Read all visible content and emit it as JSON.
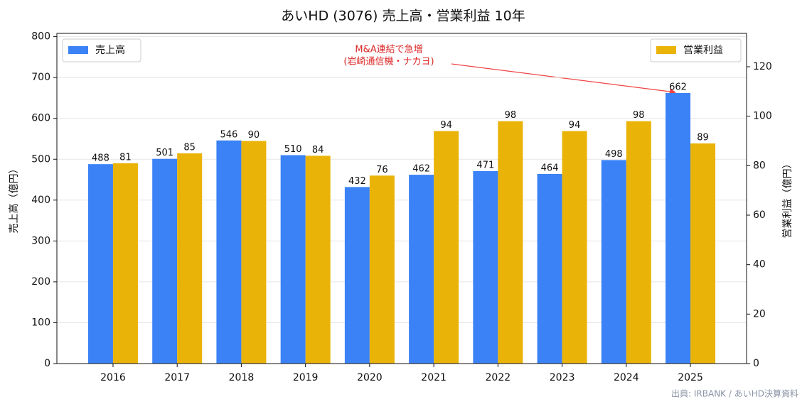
{
  "chart_data": {
    "type": "bar",
    "title": "あいHD (3076) 売上高・営業利益 10年",
    "categories": [
      "2016",
      "2017",
      "2018",
      "2019",
      "2020",
      "2021",
      "2022",
      "2023",
      "2024",
      "2025"
    ],
    "series": [
      {
        "name": "売上高",
        "color": "#3b82f6",
        "axis": "y",
        "values": [
          488,
          501,
          546,
          510,
          432,
          462,
          471,
          464,
          498,
          662
        ]
      },
      {
        "name": "営業利益",
        "color": "#eab308",
        "axis": "y2",
        "values": [
          81,
          85,
          90,
          84,
          76,
          94,
          98,
          94,
          98,
          89
        ]
      }
    ],
    "ylim": [
      0,
      808
    ],
    "yticks": [
      0,
      100,
      200,
      300,
      400,
      500,
      600,
      700,
      800
    ],
    "y2lim": [
      0,
      133.5
    ],
    "y2ticks": [
      0,
      20,
      40,
      60,
      80,
      100,
      120
    ],
    "ylabel": "売上高（億円）",
    "y2label": "営業利益（億円）",
    "grid": true,
    "annotation": [
      "M&A連結で急増",
      "(岩崎通信機・ナカヨ)"
    ],
    "source": "出典: IRBANK / あいHD決算資料"
  }
}
